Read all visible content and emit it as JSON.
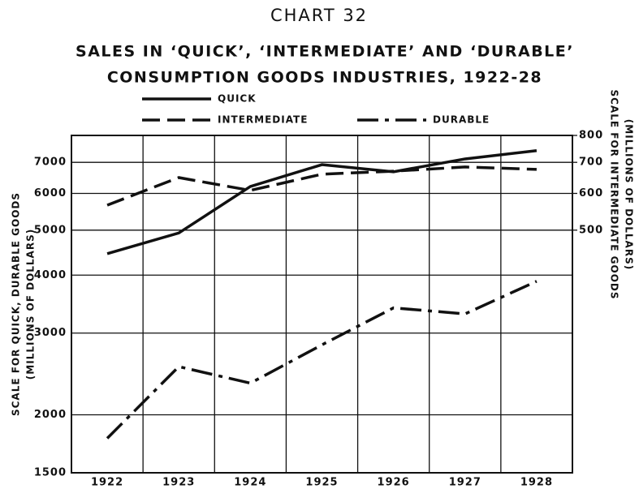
{
  "chart_data": {
    "type": "line",
    "title": "CHART 32",
    "subtitle": [
      "SALES IN ‘QUICK’, ‘INTERMEDIATE’ AND ‘DURABLE’",
      "CONSUMPTION GOODS INDUSTRIES, 1922-28"
    ],
    "ylabel": [
      "SCALE FOR QUICK, DURABLE GOODS",
      "(MILLIONS OF DOLLARS)"
    ],
    "y2label": [
      "SCALE FOR INTERMEDIATE GOODS",
      "(MILLIONS OF DOLLARS)"
    ],
    "categories": [
      "1922",
      "1923",
      "1924",
      "1925",
      "1926",
      "1927",
      "1928"
    ],
    "series": [
      {
        "name": "QUICK",
        "color": "#111111",
        "linestyle": "solid",
        "values": [
          4450,
          4930,
          6210,
          6920,
          6680,
          7120,
          7420
        ]
      },
      {
        "name": "INTERMEDIATE",
        "color": "#111111",
        "linestyle": "dashed",
        "axis": "y2",
        "values": [
          566,
          649,
          609,
          660,
          670,
          684,
          676
        ]
      },
      {
        "name": "DURABLE",
        "color": "#111111",
        "linestyle": "dashdot",
        "values": [
          1780,
          2540,
          2340,
          2830,
          3400,
          3300,
          3880
        ]
      }
    ],
    "log_scale": true,
    "grid": true,
    "ylim": [
      1500,
      8000
    ],
    "yticks": [
      1500,
      2000,
      3000,
      4000,
      5000,
      6000,
      7000
    ],
    "y2lim": [
      150,
      800
    ],
    "y2ticks": [
      500,
      600,
      700,
      800
    ]
  }
}
